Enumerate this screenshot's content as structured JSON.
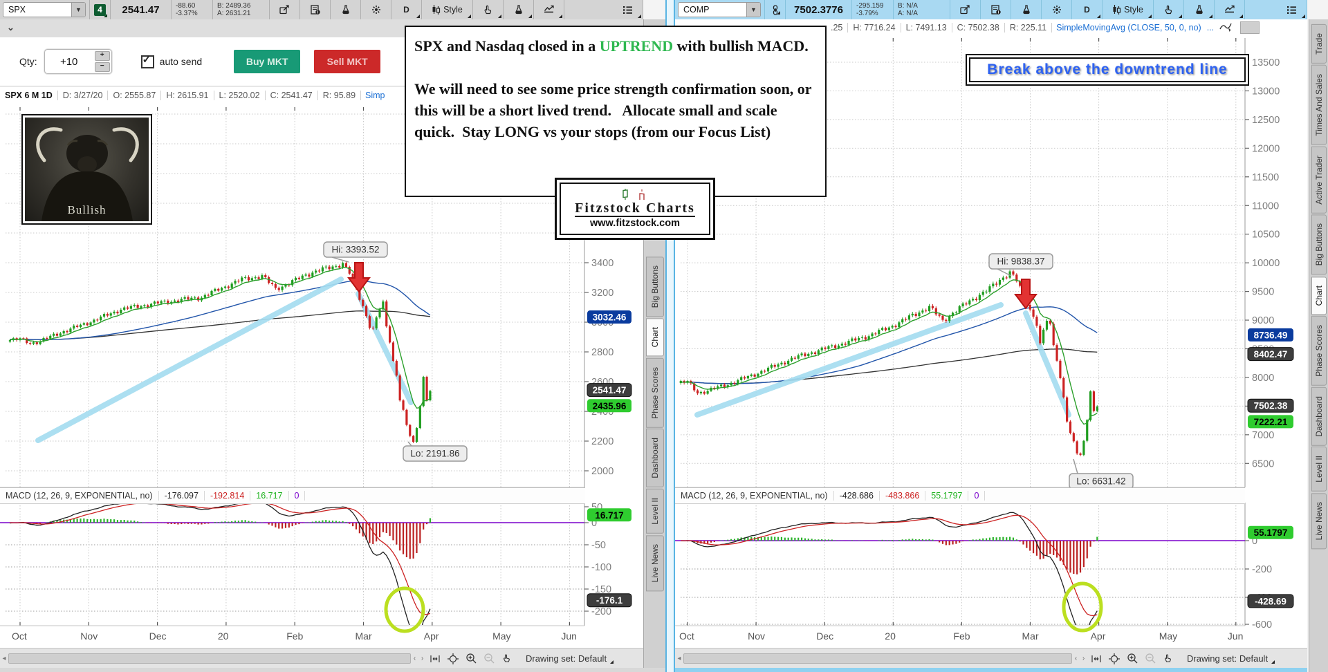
{
  "left": {
    "header": {
      "symbol": "SPX",
      "badge": "4",
      "last": "2541.47",
      "change": "-88.60",
      "change_pct": "-3.37%",
      "bid": "B: 2489.36",
      "ask": "A: 2631.21",
      "timeframe": "D",
      "style_label": "Style",
      "tools": [
        {
          "icon": "share"
        },
        {
          "icon": "note"
        },
        {
          "icon": "flask"
        },
        {
          "icon": "gear"
        },
        {
          "text": "D",
          "corner": true,
          "name": "timeframe"
        },
        {
          "icon": "candle-style",
          "label": "Style",
          "corner": true,
          "name": "style"
        },
        {
          "icon": "pointer",
          "corner": true
        },
        {
          "icon": "flask",
          "corner": true
        },
        {
          "icon": "chart-line",
          "corner": true
        },
        {
          "spacer": true
        },
        {
          "icon": "list",
          "corner": true
        }
      ]
    },
    "order_bar": {
      "qty_label": "Qty:",
      "qty_value": "+10",
      "auto_send_label": "auto send",
      "buy_label": "Buy MKT",
      "sell_label": "Sell MKT"
    },
    "ohlc": {
      "title": "SPX 6 M 1D",
      "cells": [
        "D: 3/27/20",
        "O: 2555.87",
        "H: 2615.91",
        "L: 2520.02",
        "C: 2541.47",
        "R: 95.89"
      ],
      "study": "Simp"
    },
    "chart": {
      "y_ticks": [
        3400,
        3200,
        3000,
        2800,
        2600,
        2400,
        2200,
        2000
      ],
      "bubbles": [
        {
          "label": "3032.46",
          "price": 3032.46,
          "color": "blue"
        },
        {
          "label": "2541.47",
          "price": 2541.47,
          "color": "dark"
        },
        {
          "label": "2435.96",
          "price": 2435.96,
          "color": "green"
        }
      ],
      "hi": "Hi: 3393.52",
      "lo": "Lo: 2191.86",
      "months": [
        "Oct",
        "Nov",
        "Dec",
        "20",
        "Feb",
        "Mar",
        "Apr",
        "May",
        "Jun"
      ]
    },
    "macd": {
      "label": "MACD (12, 26, 9, EXPONENTIAL, no)",
      "values": [
        "-176.097",
        "-192.814",
        "16.717",
        "0"
      ],
      "ticks": [
        50,
        0,
        -50,
        -100,
        -150,
        -200
      ],
      "bubble_pos": "16.717",
      "bubble_neg": "-176.1"
    },
    "footer": {
      "drawing_set": "Drawing set: Default"
    },
    "tabs": [
      "Big Buttons",
      "Chart",
      "Phase Scores",
      "Dashboard",
      "Level II",
      "Live News"
    ],
    "active_tab": "Chart"
  },
  "right": {
    "header": {
      "symbol": "COMP",
      "last": "7502.3776",
      "change": "-295.159",
      "change_pct": "-3.79%",
      "bid": "B: N/A",
      "ask": "A: N/A",
      "timeframe": "D",
      "style_label": "Style",
      "tools": [
        {
          "icon": "share"
        },
        {
          "icon": "note"
        },
        {
          "icon": "flask"
        },
        {
          "icon": "gear"
        },
        {
          "text": "D",
          "corner": true,
          "name": "timeframe"
        },
        {
          "icon": "candle-style",
          "label": "Style",
          "corner": true,
          "name": "style"
        },
        {
          "icon": "pointer",
          "corner": true
        },
        {
          "icon": "flask",
          "corner": true
        },
        {
          "icon": "chart-line",
          "corner": true
        },
        {
          "spacer": true
        },
        {
          "icon": "list",
          "corner": true
        }
      ]
    },
    "ohlc": {
      "cells": [
        ".25",
        "H: 7716.24",
        "L: 7491.13",
        "C: 7502.38",
        "R: 225.11"
      ],
      "study": "SimpleMovingAvg (CLOSE, 50, 0, no)",
      "more": "..."
    },
    "chart": {
      "y_ticks": [
        13500,
        13000,
        12500,
        12000,
        11500,
        11000,
        10500,
        10000,
        9500,
        9000,
        8500,
        8000,
        7500,
        7000,
        6500
      ],
      "bubbles": [
        {
          "label": "8736.49",
          "price": 8736.49,
          "color": "blue"
        },
        {
          "label": "8402.47",
          "price": 8402.47,
          "color": "dark"
        },
        {
          "label": "7502.38",
          "price": 7502.38,
          "color": "dark"
        },
        {
          "label": "7222.21",
          "price": 7222.21,
          "color": "green"
        }
      ],
      "hi": "Hi: 9838.37",
      "lo": "Lo: 6631.42",
      "months": [
        "Oct",
        "Nov",
        "Dec",
        "20",
        "Feb",
        "Mar",
        "Apr",
        "May",
        "Jun"
      ]
    },
    "macd": {
      "label": "MACD (12, 26, 9, EXPONENTIAL, no)",
      "values": [
        "-428.686",
        "-483.866",
        "55.1797",
        "0"
      ],
      "ticks": [
        0,
        -200,
        -400,
        -600
      ],
      "bubble_pos": "55.1797",
      "bubble_neg": "-428.69"
    },
    "footer": {
      "drawing_set": "Drawing set: Default"
    },
    "tabs": [
      "Trade",
      "Times And Sales",
      "Active Trader",
      "Big Buttons",
      "Chart",
      "Phase Scores",
      "Dashboard",
      "Level II",
      "Live News"
    ],
    "active_tab": "Chart"
  },
  "overlays": {
    "annotation": {
      "p1_a": "SPX and Nasdaq closed in a ",
      "p1_hl": "UPTREND",
      "p1_b": " with bullish MACD.",
      "p2": "We will need to see some price strength confirmation soon, or this will be a short lived trend.   Allocate small and scale quick.  Stay LONG vs your stops (from our Focus List)"
    },
    "logo": {
      "title": "Fitzstock Charts",
      "url": "www.fitzstock.com"
    },
    "banner": {
      "text": "Break above the downtrend line"
    },
    "bull": {
      "caption": "Bullish"
    }
  },
  "colors": {
    "buy_green": "#189a76",
    "sell_red": "#cc2929",
    "header_blue": "#a9d9f2",
    "candle_up": "#1f9d1f",
    "candle_down": "#cc2222",
    "ma_fast_green": "#2ca02c",
    "ma_mid_blue": "#2255aa",
    "ma_slow_black": "#333333",
    "trend_cyan": "#a5ddf0",
    "macd_zero_purple": "#7a00cc",
    "bubble_blue": "#0a3b9e",
    "bubble_dark": "#3d3d3d",
    "bubble_green": "#2fcc2f",
    "highlight_green": "#2eb850",
    "banner_blue": "#2e62f0",
    "ellipse_green": "#bbdf20",
    "arrow_red": "#e23333"
  },
  "chart_data": [
    {
      "type": "candlestick",
      "symbol": "SPX",
      "timeframe": "6 M 1D",
      "title": "SPX 6 M 1D with MACD (12, 26, 9, EXPONENTIAL, no)",
      "x_months": [
        "Oct",
        "Nov",
        "Dec",
        "20",
        "Feb",
        "Mar",
        "Apr",
        "May",
        "Jun"
      ],
      "y_range": [
        2000,
        3400
      ],
      "hi": 3393.52,
      "lo": 2191.86,
      "close": 2541.47,
      "price_anchors": [
        [
          0,
          2885
        ],
        [
          3,
          2858
        ],
        [
          6,
          2872
        ],
        [
          12,
          2930
        ],
        [
          18,
          2978
        ],
        [
          24,
          3030
        ],
        [
          30,
          3087
        ],
        [
          36,
          3110
        ],
        [
          42,
          3133
        ],
        [
          48,
          3150
        ],
        [
          54,
          3168
        ],
        [
          60,
          3230
        ],
        [
          66,
          3288
        ],
        [
          72,
          3310
        ],
        [
          76,
          3225
        ],
        [
          80,
          3260
        ],
        [
          85,
          3320
        ],
        [
          90,
          3355
        ],
        [
          94,
          3380
        ],
        [
          96,
          3393
        ],
        [
          98,
          3330
        ],
        [
          100,
          3220
        ],
        [
          102,
          3110
        ],
        [
          104,
          2975
        ],
        [
          105,
          2950
        ],
        [
          106,
          3020
        ],
        [
          107,
          3090
        ],
        [
          108,
          3130
        ],
        [
          109,
          2970
        ],
        [
          110,
          2880
        ],
        [
          111,
          2740
        ],
        [
          112,
          2640
        ],
        [
          113,
          2480
        ],
        [
          114,
          2400
        ],
        [
          115,
          2300
        ],
        [
          116,
          2240
        ],
        [
          117,
          2192
        ],
        [
          118,
          2290
        ],
        [
          119,
          2450
        ],
        [
          120,
          2630
        ],
        [
          121,
          2470
        ],
        [
          122,
          2541
        ]
      ],
      "macd": {
        "value": -176.097,
        "signal": -192.814,
        "diff": 16.717,
        "zero": 0,
        "y_ticks": [
          50,
          0,
          -50,
          -100,
          -150,
          -200
        ]
      }
    },
    {
      "type": "candlestick",
      "symbol": "COMP",
      "timeframe": "6 M 1D",
      "title": "COMP 6 M 1D with MACD (12, 26, 9, EXPONENTIAL, no)",
      "x_months": [
        "Oct",
        "Nov",
        "Dec",
        "20",
        "Feb",
        "Mar",
        "Apr",
        "May",
        "Jun"
      ],
      "y_range": [
        6500,
        13500
      ],
      "hi": 9838.37,
      "lo": 6631.42,
      "close": 7502.38,
      "price_anchors": [
        [
          0,
          7920
        ],
        [
          3,
          7730
        ],
        [
          6,
          7770
        ],
        [
          12,
          7880
        ],
        [
          18,
          8010
        ],
        [
          24,
          8150
        ],
        [
          30,
          8300
        ],
        [
          36,
          8420
        ],
        [
          42,
          8520
        ],
        [
          48,
          8620
        ],
        [
          54,
          8730
        ],
        [
          60,
          8870
        ],
        [
          66,
          9050
        ],
        [
          72,
          9230
        ],
        [
          76,
          8990
        ],
        [
          80,
          9170
        ],
        [
          85,
          9370
        ],
        [
          90,
          9550
        ],
        [
          94,
          9750
        ],
        [
          96,
          9838
        ],
        [
          98,
          9690
        ],
        [
          100,
          9430
        ],
        [
          102,
          9190
        ],
        [
          104,
          8940
        ],
        [
          105,
          8570
        ],
        [
          106,
          8800
        ],
        [
          107,
          9000
        ],
        [
          108,
          8910
        ],
        [
          109,
          8560
        ],
        [
          110,
          8340
        ],
        [
          111,
          7990
        ],
        [
          112,
          7650
        ],
        [
          113,
          7250
        ],
        [
          114,
          7000
        ],
        [
          115,
          6860
        ],
        [
          116,
          6690
        ],
        [
          117,
          6640
        ],
        [
          118,
          6900
        ],
        [
          119,
          7300
        ],
        [
          120,
          7750
        ],
        [
          121,
          7400
        ],
        [
          122,
          7502
        ]
      ],
      "macd": {
        "value": -428.686,
        "signal": -483.866,
        "diff": 55.1797,
        "zero": 0,
        "y_ticks": [
          0,
          -200,
          -400,
          -600
        ]
      }
    }
  ]
}
